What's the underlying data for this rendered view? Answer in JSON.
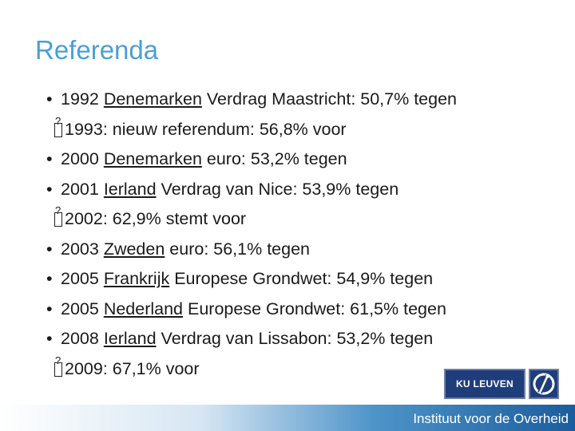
{
  "title": "Referenda",
  "items": [
    {
      "type": "bullet",
      "marker": "•",
      "pre": "1992 ",
      "country": "Denemarken",
      "post": " Verdrag Maastricht: 50,7% tegen"
    },
    {
      "type": "sub",
      "text": "1993: nieuw referendum: 56,8% voor"
    },
    {
      "type": "bullet",
      "marker": "•",
      "pre": "2000 ",
      "country": "Denemarken",
      "post": " euro: 53,2% tegen"
    },
    {
      "type": "bullet",
      "marker": "•",
      "pre": "2001 ",
      "country": "Ierland",
      "post": " Verdrag van Nice: 53,9% tegen"
    },
    {
      "type": "sub",
      "text": "2002: 62,9% stemt voor"
    },
    {
      "type": "bullet",
      "marker": "•",
      "pre": "2003 ",
      "country": "Zweden",
      "post": " euro: 56,1% tegen"
    },
    {
      "type": "bullet",
      "marker": "•",
      "pre": "2005 ",
      "country": "Frankrijk",
      "post": " Europese Grondwet: 54,9% tegen"
    },
    {
      "type": "bullet",
      "marker": "•",
      "pre": "2005 ",
      "country": "Nederland",
      "post": " Europese Grondwet: 61,5% tegen"
    },
    {
      "type": "bullet",
      "marker": "•",
      "pre": "2008 ",
      "country": "Ierland",
      "post": " Verdrag van Lissabon: 53,2% tegen"
    },
    {
      "type": "sub",
      "text": "2009: 67,1% voor"
    }
  ],
  "logo": {
    "text": "KU LEUVEN"
  },
  "footer": {
    "text": "Instituut voor de Overheid"
  },
  "colors": {
    "title": "#4a9fd6",
    "logo_bg": "#1f3d7a",
    "footer_dark": "#1c5c9c"
  }
}
